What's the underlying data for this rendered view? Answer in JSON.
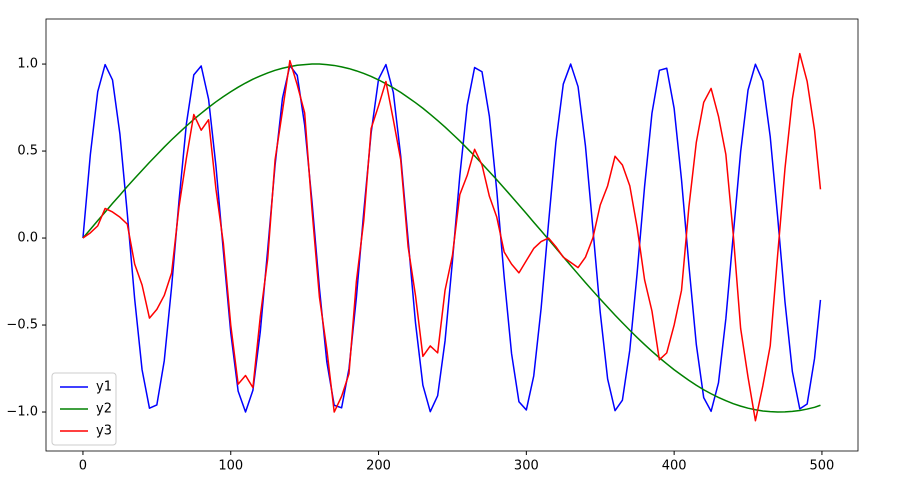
{
  "chart_data": {
    "type": "line",
    "x": [
      0,
      5,
      10,
      15,
      20,
      25,
      30,
      35,
      40,
      45,
      50,
      55,
      60,
      65,
      70,
      75,
      80,
      85,
      90,
      95,
      100,
      105,
      110,
      115,
      120,
      125,
      130,
      135,
      140,
      145,
      150,
      155,
      160,
      165,
      170,
      175,
      180,
      185,
      190,
      195,
      200,
      205,
      210,
      215,
      220,
      225,
      230,
      235,
      240,
      245,
      250,
      255,
      260,
      265,
      270,
      275,
      280,
      285,
      290,
      295,
      300,
      305,
      310,
      315,
      320,
      325,
      330,
      335,
      340,
      345,
      350,
      355,
      360,
      365,
      370,
      375,
      380,
      385,
      390,
      395,
      400,
      405,
      410,
      415,
      420,
      425,
      430,
      435,
      440,
      445,
      450,
      455,
      460,
      465,
      470,
      475,
      480,
      485,
      490,
      495,
      499
    ],
    "series": [
      {
        "name": "y1",
        "color": "#0000ff",
        "values": [
          0,
          0.479,
          0.841,
          0.997,
          0.909,
          0.598,
          0.141,
          -0.351,
          -0.757,
          -0.978,
          -0.959,
          -0.706,
          -0.279,
          0.215,
          0.657,
          0.938,
          0.989,
          0.798,
          0.412,
          -0.075,
          -0.544,
          -0.88,
          -1.0,
          -0.875,
          -0.537,
          -0.066,
          0.42,
          0.804,
          0.991,
          0.935,
          0.65,
          0.206,
          -0.288,
          -0.712,
          -0.961,
          -0.976,
          -0.751,
          -0.343,
          0.15,
          0.605,
          0.913,
          0.997,
          0.837,
          0.471,
          -0.009,
          -0.487,
          -0.846,
          -0.998,
          -0.906,
          -0.591,
          -0.132,
          0.359,
          0.763,
          0.98,
          0.956,
          0.699,
          0.271,
          -0.224,
          -0.664,
          -0.941,
          -0.988,
          -0.793,
          -0.404,
          0.084,
          0.551,
          0.885,
          1.0,
          0.87,
          0.529,
          0.057,
          -0.428,
          -0.81,
          -0.992,
          -0.932,
          -0.644,
          -0.198,
          0.296,
          0.718,
          0.964,
          0.976,
          0.745,
          0.334,
          -0.158,
          -0.612,
          -0.917,
          -0.996,
          -0.832,
          -0.463,
          0.018,
          0.496,
          0.851,
          0.999,
          0.902,
          0.583,
          0.124,
          -0.367,
          -0.768,
          -0.982,
          -0.954,
          -0.692,
          -0.356
        ]
      },
      {
        "name": "y2",
        "color": "#008000",
        "values": [
          0,
          0.05,
          0.1,
          0.149,
          0.199,
          0.247,
          0.296,
          0.343,
          0.389,
          0.435,
          0.479,
          0.523,
          0.565,
          0.605,
          0.644,
          0.682,
          0.717,
          0.751,
          0.783,
          0.813,
          0.841,
          0.867,
          0.891,
          0.913,
          0.932,
          0.949,
          0.964,
          0.976,
          0.985,
          0.993,
          0.997,
          1.0,
          1.0,
          0.997,
          0.992,
          0.984,
          0.974,
          0.961,
          0.946,
          0.929,
          0.909,
          0.887,
          0.863,
          0.837,
          0.808,
          0.778,
          0.746,
          0.711,
          0.675,
          0.638,
          0.598,
          0.558,
          0.515,
          0.472,
          0.427,
          0.381,
          0.335,
          0.287,
          0.239,
          0.19,
          0.141,
          0.091,
          0.042,
          -0.008,
          -0.058,
          -0.108,
          -0.158,
          -0.207,
          -0.256,
          -0.304,
          -0.351,
          -0.397,
          -0.443,
          -0.487,
          -0.53,
          -0.572,
          -0.612,
          -0.651,
          -0.688,
          -0.723,
          -0.757,
          -0.788,
          -0.818,
          -0.846,
          -0.872,
          -0.895,
          -0.916,
          -0.935,
          -0.952,
          -0.966,
          -0.978,
          -0.987,
          -0.994,
          -0.998,
          -1.0,
          -0.999,
          -0.996,
          -0.991,
          -0.983,
          -0.973,
          -0.961
        ]
      },
      {
        "name": "y3",
        "color": "#ff0000",
        "values": [
          0,
          0.03,
          0.07,
          0.17,
          0.15,
          0.12,
          0.08,
          -0.15,
          -0.27,
          -0.46,
          -0.41,
          -0.33,
          -0.2,
          0.18,
          0.46,
          0.71,
          0.62,
          0.68,
          0.28,
          -0.03,
          -0.5,
          -0.84,
          -0.79,
          -0.86,
          -0.45,
          -0.12,
          0.45,
          0.73,
          1.02,
          0.88,
          0.72,
          0.16,
          -0.34,
          -0.64,
          -1.0,
          -0.91,
          -0.78,
          -0.25,
          0.1,
          0.63,
          0.76,
          0.9,
          0.68,
          0.45,
          -0.05,
          -0.33,
          -0.68,
          -0.62,
          -0.66,
          -0.3,
          -0.1,
          0.25,
          0.36,
          0.51,
          0.42,
          0.24,
          0.12,
          -0.08,
          -0.15,
          -0.2,
          -0.13,
          -0.06,
          -0.02,
          0,
          -0.05,
          -0.11,
          -0.14,
          -0.17,
          -0.11,
          0,
          0.19,
          0.3,
          0.47,
          0.42,
          0.3,
          0.06,
          -0.24,
          -0.42,
          -0.7,
          -0.66,
          -0.5,
          -0.3,
          0.18,
          0.55,
          0.78,
          0.86,
          0.7,
          0.48,
          0.02,
          -0.52,
          -0.8,
          -1.05,
          -0.85,
          -0.62,
          -0.1,
          0.4,
          0.8,
          1.06,
          0.9,
          0.62,
          0.28
        ]
      }
    ],
    "xlim": [
      -25,
      524.4
    ],
    "xticks": [
      0,
      100,
      200,
      300,
      400,
      500
    ],
    "ylim": [
      -1.224,
      1.259
    ],
    "yticks": [
      {
        "value": -1,
        "label": "−1.0"
      },
      {
        "value": -0.5,
        "label": "−0.5"
      },
      {
        "value": 0,
        "label": "0.0"
      },
      {
        "value": 0.5,
        "label": "0.5"
      },
      {
        "value": 1,
        "label": "1.0"
      }
    ],
    "legend": "lower left"
  }
}
